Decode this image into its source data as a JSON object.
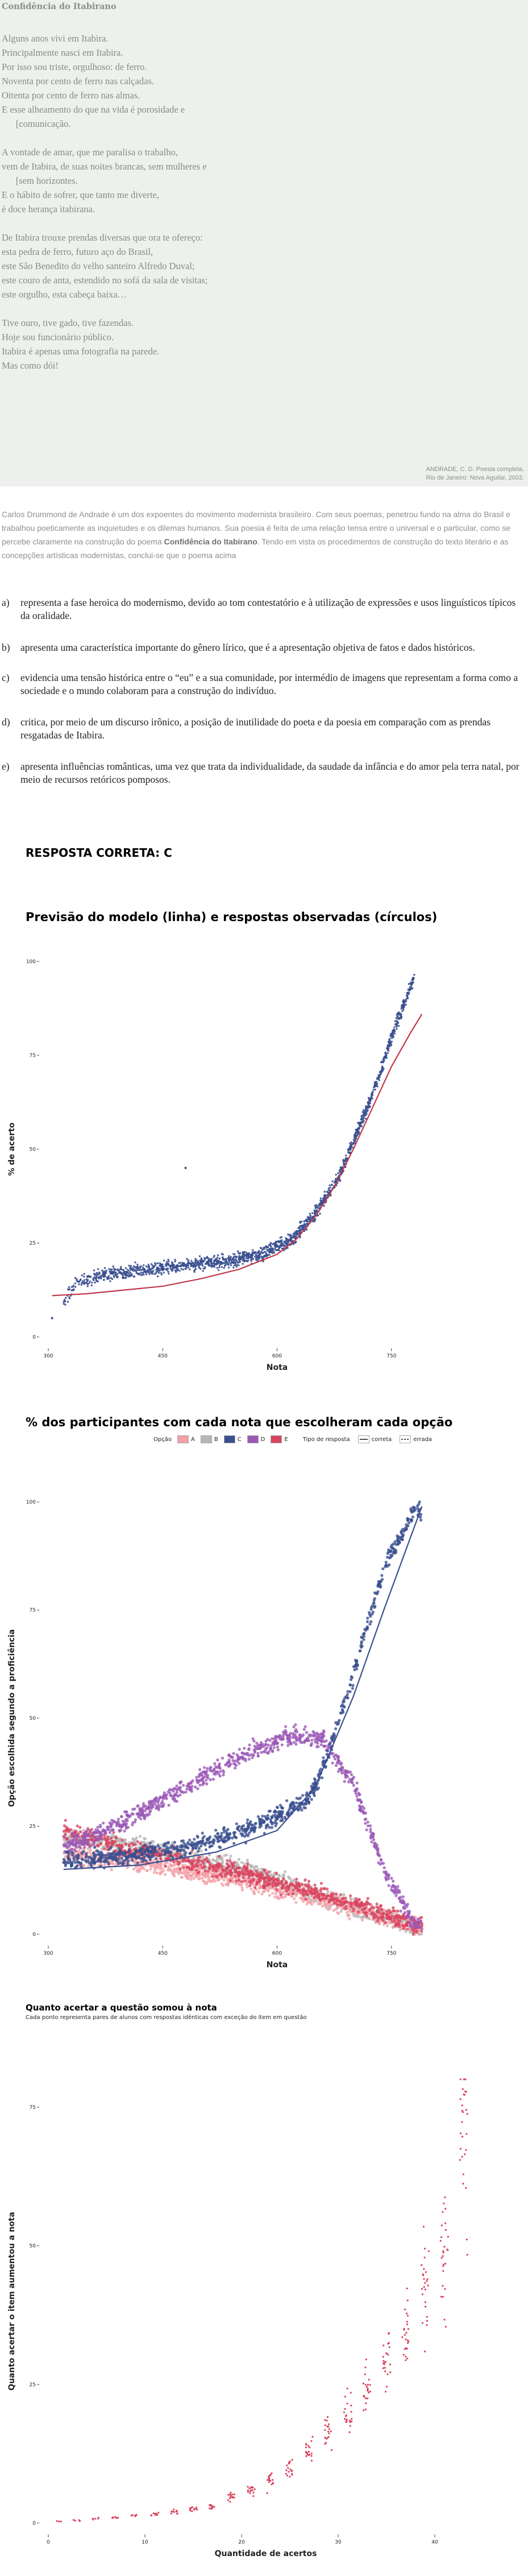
{
  "poem": {
    "title": "Confidência do Itabirano",
    "lines": [
      "Alguns anos vivi em Itabira.",
      "Principalmente nasci em Itabira.",
      "Por isso sou triste, orgulhoso: de ferro.",
      "Noventa por cento de ferro nas calçadas.",
      "Oitenta por cento de ferro nas almas.",
      "E esse alheamento do que na vida é porosidade e",
      "      [comunicação.",
      "",
      "A vontade de amar, que me paralisa o trabalho,",
      "vem de Itabira, de suas noites brancas, sem mulheres e",
      "      [sem horizontes.",
      "E o hábito de sofrer, que tanto me diverte,",
      "é doce herança itabirana.",
      "",
      "De Itabira trouxe prendas diversas que ora te ofereço:",
      "esta pedra de ferro, futuro aço do Brasil,",
      "este São Benedito do velho santeiro Alfredo Duval;",
      "este couro de anta, estendido no sofá da sala de visitas;",
      "este orgulho, esta cabeça baixa…",
      "",
      "Tive ouro, tive gado, tive fazendas.",
      "Hoje sou funcionário público.",
      "Itabira é apenas uma fotografia na parede.",
      "Mas como dói!"
    ],
    "credit_line1": "ANDRADE, C. D. Poesia completa.",
    "credit_line2": "Rio de Janeiro: Nova Aguilar, 2003."
  },
  "question": {
    "intro_a": "Carlos Drummond de Andrade é um dos expoentes do movimento modernista brasileiro. Com seus poemas, penetrou fundo na alma do Brasil e trabalhou poeticamente as inquietudes e os dilemas humanos. Sua poesia é feita de uma relação tensa entre o universal e o particular, como se percebe claramente na construção do poema ",
    "intro_bold": "Confidência do Itabirano",
    "intro_b": ". Tendo em vista os procedimentos de construção do texto literário e as concepções artísticas modernistas, conclui-se que o poema acima",
    "alternatives": [
      {
        "letter": "a)",
        "text": "representa a fase heroica do modernismo, devido ao tom contestatório e à utilização de expressões e usos linguísticos típicos da oralidade."
      },
      {
        "letter": "b)",
        "text": "apresenta uma característica importante do gênero lírico, que é a apresentação objetiva de fatos e dados históricos."
      },
      {
        "letter": "c)",
        "text": "evidencia uma tensão histórica entre o “eu” e a sua comunidade, por intermédio de imagens que representam a forma como a sociedade e o mundo colaboram para a construção do indivíduo."
      },
      {
        "letter": "d)",
        "text": "critica, por meio de um discurso irônico, a posição de inutilidade do poeta e da poesia em comparação com as prendas resgatadas de Itabira."
      },
      {
        "letter": "e)",
        "text": "apresenta influências românticas, uma vez que trata da individualidade, da saudade da infância e do amor pela terra natal, por meio de recursos retóricos pomposos."
      }
    ],
    "answer": "RESPOSTA CORRETA: C"
  },
  "colors": {
    "points": "#3a4f8f",
    "model_line": "#c0394b",
    "A": "#f4a0a8",
    "B": "#b8b6b6",
    "C": "#3a4f8f",
    "D": "#9b59b6",
    "E": "#d9455f"
  },
  "chart_data": [
    {
      "type": "scatter",
      "title": "Previsão do modelo (linha) e respostas observadas (círculos)",
      "xlabel": "Nota",
      "ylabel": "% de acerto",
      "xlim": [
        300,
        900
      ],
      "ylim": [
        0,
        100
      ],
      "yticks": [
        0,
        25,
        50,
        75,
        100
      ],
      "xticks": [
        300,
        450,
        600,
        750
      ],
      "xtick_labels": [
        "300",
        "450",
        "600",
        "750"
      ],
      "series": [
        {
          "points_x": [
            305,
            335,
            380,
            430,
            480,
            530,
            580,
            620,
            650,
            680,
            700,
            720,
            735,
            750,
            765,
            780
          ],
          "points_y": [
            5,
            14,
            17,
            18,
            19,
            20,
            22,
            26,
            33,
            42,
            52,
            62,
            70,
            80,
            88,
            96
          ]
        },
        {
          "line_x": [
            305,
            350,
            400,
            450,
            500,
            550,
            600,
            625,
            650,
            675,
            700,
            725,
            750,
            775,
            790
          ],
          "line_y": [
            11,
            11.5,
            12.5,
            13.5,
            15.5,
            18,
            22,
            26,
            32,
            40,
            50,
            61,
            72,
            81,
            86
          ]
        }
      ]
    },
    {
      "type": "scatter",
      "title": "% dos participantes com cada nota que escolheram cada opção",
      "xlabel": "Nota",
      "ylabel": "Opção escolhida segundo a proficiência",
      "legend_option_label": "Opção",
      "legend_type_label": "Tipo de resposta",
      "legend_correct": "correta",
      "legend_wrong": "errada",
      "xlim": [
        300,
        900
      ],
      "ylim": [
        0,
        100
      ],
      "yticks": [
        0,
        25,
        50,
        75,
        100
      ],
      "xticks": [
        300,
        450,
        600,
        750
      ],
      "xtick_labels": [
        "300",
        "450",
        "600",
        "750"
      ],
      "series": [
        {
          "name": "A",
          "x": [
            320,
            400,
            480,
            560,
            640,
            720,
            780
          ],
          "y": [
            18,
            17,
            15,
            12,
            9,
            5,
            2
          ]
        },
        {
          "name": "B",
          "x": [
            320,
            400,
            480,
            560,
            640,
            720,
            780
          ],
          "y": [
            22,
            21,
            18,
            15,
            10,
            5,
            2
          ]
        },
        {
          "name": "C",
          "x": [
            320,
            400,
            480,
            560,
            640,
            660,
            700,
            740,
            780
          ],
          "y": [
            17,
            18,
            20,
            24,
            31,
            38,
            60,
            85,
            98
          ]
        },
        {
          "name": "D",
          "x": [
            320,
            400,
            480,
            560,
            620,
            660,
            700,
            740,
            780
          ],
          "y": [
            20,
            26,
            34,
            42,
            46,
            45,
            35,
            15,
            2
          ]
        },
        {
          "name": "E",
          "x": [
            320,
            400,
            480,
            560,
            640,
            720,
            780
          ],
          "y": [
            24,
            20,
            17,
            14,
            10,
            6,
            2
          ]
        }
      ],
      "fit_line_C": {
        "x": [
          320,
          420,
          520,
          600,
          650,
          700,
          740,
          790
        ],
        "y": [
          15,
          16,
          19,
          24,
          34,
          55,
          75,
          99
        ]
      }
    },
    {
      "type": "scatter",
      "title": "Quanto acertar a questão somou à nota",
      "subtitle": "Cada ponto representa pares de alunos com respostas idênticas com exceção do item em questão",
      "xlabel": "Quantidade de acertos",
      "ylabel": "Quanto acertar o item aumentou a nota",
      "xlim": [
        0,
        45
      ],
      "ylim": [
        0,
        80
      ],
      "yticks": [
        0,
        25,
        50,
        75
      ],
      "xticks": [
        0,
        10,
        20,
        30,
        40
      ],
      "x": [
        1,
        3,
        5,
        7,
        9,
        11,
        13,
        15,
        17,
        19,
        21,
        23,
        25,
        27,
        29,
        31,
        33,
        35,
        37,
        39,
        41,
        43
      ],
      "y": [
        0.3,
        0.5,
        0.8,
        1.0,
        1.3,
        1.6,
        2.0,
        2.5,
        3.2,
        4.5,
        6.0,
        8,
        10,
        13,
        16,
        20,
        24,
        29,
        35,
        42,
        50,
        70
      ]
    }
  ]
}
